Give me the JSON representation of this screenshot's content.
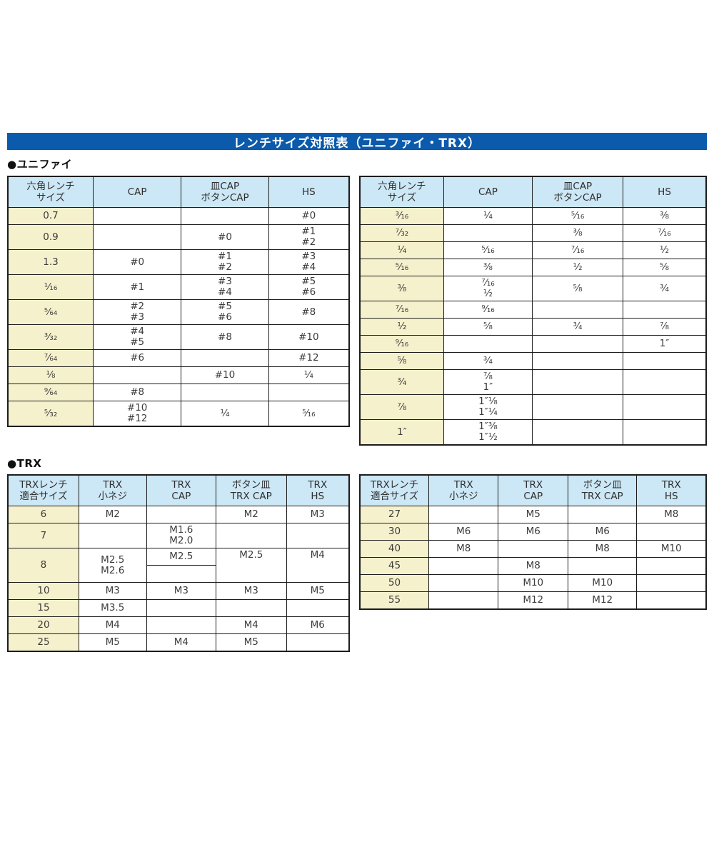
{
  "page": {
    "title": "レンチサイズ対照表（ユニファイ・TRX）",
    "colors": {
      "title_bar_blue": "#0b5aab",
      "title_text": "#ffffff",
      "header_cell_blue": "#cce7f5",
      "size_column_yellow": "#f6f1cd",
      "table_border": "#1c1c1c",
      "cell_text": "#3c3c3c"
    }
  },
  "unify": {
    "label": "●ユニファイ",
    "headers": [
      "六角レンチ\nサイズ",
      "CAP",
      "皿CAP\nボタンCAP",
      "HS"
    ],
    "left": {
      "rows": [
        {
          "cells": [
            {
              "t": "0.7"
            },
            {
              "t": ""
            },
            {
              "t": ""
            },
            {
              "t": "#0"
            }
          ]
        },
        {
          "cells": [
            {
              "t": "0.9"
            },
            {
              "t": ""
            },
            {
              "t": "#0"
            },
            {
              "t": "#1\n#2"
            }
          ]
        },
        {
          "cells": [
            {
              "t": "1.3"
            },
            {
              "t": "#0"
            },
            {
              "t": "#1\n#2"
            },
            {
              "t": "#3\n#4"
            }
          ]
        },
        {
          "cells": [
            {
              "t": "¹⁄₁₆"
            },
            {
              "t": "#1"
            },
            {
              "t": "#3\n#4"
            },
            {
              "t": "#5\n#6"
            }
          ]
        },
        {
          "cells": [
            {
              "t": "⁵⁄₆₄"
            },
            {
              "t": "#2\n#3"
            },
            {
              "t": "#5\n#6"
            },
            {
              "t": "#8"
            }
          ]
        },
        {
          "cells": [
            {
              "t": "³⁄₃₂"
            },
            {
              "t": "#4\n#5"
            },
            {
              "t": "#8"
            },
            {
              "t": "#10"
            }
          ]
        },
        {
          "cells": [
            {
              "t": "⁷⁄₆₄"
            },
            {
              "t": "#6"
            },
            {
              "t": ""
            },
            {
              "t": "#12"
            }
          ]
        },
        {
          "cells": [
            {
              "t": "¹⁄₈"
            },
            {
              "t": ""
            },
            {
              "t": "#10"
            },
            {
              "t": "¹⁄₄"
            }
          ]
        },
        {
          "cells": [
            {
              "t": "⁹⁄₆₄"
            },
            {
              "t": "#8"
            },
            {
              "t": ""
            },
            {
              "t": ""
            }
          ]
        },
        {
          "cells": [
            {
              "t": "⁵⁄₃₂"
            },
            {
              "t": "#10\n#12"
            },
            {
              "t": "¹⁄₄"
            },
            {
              "t": "⁵⁄₁₆"
            }
          ]
        }
      ]
    },
    "right": {
      "rows": [
        {
          "cells": [
            {
              "t": "³⁄₁₆"
            },
            {
              "t": "¹⁄₄"
            },
            {
              "t": "⁵⁄₁₆"
            },
            {
              "t": "³⁄₈"
            }
          ]
        },
        {
          "cells": [
            {
              "t": "⁷⁄₃₂"
            },
            {
              "t": ""
            },
            {
              "t": "³⁄₈"
            },
            {
              "t": "⁷⁄₁₆"
            }
          ]
        },
        {
          "cells": [
            {
              "t": "¹⁄₄"
            },
            {
              "t": "⁵⁄₁₆"
            },
            {
              "t": "⁷⁄₁₆"
            },
            {
              "t": "¹⁄₂"
            }
          ]
        },
        {
          "cells": [
            {
              "t": "⁵⁄₁₆"
            },
            {
              "t": "³⁄₈"
            },
            {
              "t": "¹⁄₂"
            },
            {
              "t": "⁵⁄₈"
            }
          ]
        },
        {
          "cells": [
            {
              "t": "³⁄₈"
            },
            {
              "t": "⁷⁄₁₆\n¹⁄₂"
            },
            {
              "t": "⁵⁄₈"
            },
            {
              "t": "³⁄₄"
            }
          ]
        },
        {
          "cells": [
            {
              "t": "⁷⁄₁₆"
            },
            {
              "t": "⁹⁄₁₆"
            },
            {
              "t": ""
            },
            {
              "t": ""
            }
          ]
        },
        {
          "cells": [
            {
              "t": "¹⁄₂"
            },
            {
              "t": "⁵⁄₈"
            },
            {
              "t": "³⁄₄"
            },
            {
              "t": "⁷⁄₈"
            }
          ]
        },
        {
          "cells": [
            {
              "t": "⁹⁄₁₆"
            },
            {
              "t": ""
            },
            {
              "t": ""
            },
            {
              "t": "1″"
            }
          ]
        },
        {
          "cells": [
            {
              "t": "⁵⁄₈"
            },
            {
              "t": "³⁄₄"
            },
            {
              "t": ""
            },
            {
              "t": ""
            }
          ]
        },
        {
          "cells": [
            {
              "t": "³⁄₄"
            },
            {
              "t": "⁷⁄₈\n1″"
            },
            {
              "t": ""
            },
            {
              "t": ""
            }
          ]
        },
        {
          "cells": [
            {
              "t": "⁷⁄₈"
            },
            {
              "t": "1″¹⁄₈\n1″¹⁄₄"
            },
            {
              "t": ""
            },
            {
              "t": ""
            }
          ]
        },
        {
          "cells": [
            {
              "t": "1″"
            },
            {
              "t": "1″³⁄₈\n1″¹⁄₂"
            },
            {
              "t": ""
            },
            {
              "t": ""
            }
          ]
        }
      ]
    }
  },
  "trx": {
    "label": "●TRX",
    "headers": [
      "TRXレンチ\n適合サイズ",
      "TRX\n小ネジ",
      "TRX\nCAP",
      "ボタン皿\nTRX CAP",
      "TRX\nHS"
    ],
    "left": {
      "rows": [
        {
          "cells": [
            {
              "t": "6"
            },
            {
              "t": "M2"
            },
            {
              "t": ""
            },
            {
              "t": "M2"
            },
            {
              "t": "M3"
            }
          ]
        },
        {
          "cells": [
            {
              "t": "7"
            },
            {
              "t": ""
            },
            {
              "t": "M1.6\nM2.0"
            },
            {
              "t": ""
            },
            {
              "t": ""
            }
          ]
        },
        {
          "cells": [
            {
              "t": "8",
              "rs": 2
            },
            {
              "t": "M2.5\nM2.6",
              "rs": 2
            },
            {
              "t": "M2.5"
            },
            {
              "t": "M2.5",
              "rs": 2,
              "va": "top"
            },
            {
              "t": "M4",
              "rs": 2,
              "va": "top"
            }
          ]
        },
        {
          "cells": [
            {
              "t": ""
            }
          ]
        },
        {
          "cells": [
            {
              "t": "10"
            },
            {
              "t": "M3"
            },
            {
              "t": "M3"
            },
            {
              "t": "M3"
            },
            {
              "t": "M5"
            }
          ]
        },
        {
          "cells": [
            {
              "t": "15"
            },
            {
              "t": "M3.5"
            },
            {
              "t": ""
            },
            {
              "t": ""
            },
            {
              "t": ""
            }
          ]
        },
        {
          "cells": [
            {
              "t": "20"
            },
            {
              "t": "M4"
            },
            {
              "t": ""
            },
            {
              "t": "M4"
            },
            {
              "t": "M6"
            }
          ]
        },
        {
          "cells": [
            {
              "t": "25"
            },
            {
              "t": "M5"
            },
            {
              "t": "M4"
            },
            {
              "t": "M5"
            },
            {
              "t": ""
            }
          ]
        }
      ]
    },
    "right": {
      "rows": [
        {
          "cells": [
            {
              "t": "27"
            },
            {
              "t": ""
            },
            {
              "t": "M5"
            },
            {
              "t": ""
            },
            {
              "t": "M8"
            }
          ]
        },
        {
          "cells": [
            {
              "t": "30"
            },
            {
              "t": "M6"
            },
            {
              "t": "M6"
            },
            {
              "t": "M6"
            },
            {
              "t": ""
            }
          ]
        },
        {
          "cells": [
            {
              "t": "40"
            },
            {
              "t": "M8"
            },
            {
              "t": ""
            },
            {
              "t": "M8"
            },
            {
              "t": "M10"
            }
          ]
        },
        {
          "cells": [
            {
              "t": "45"
            },
            {
              "t": ""
            },
            {
              "t": "M8"
            },
            {
              "t": ""
            },
            {
              "t": ""
            }
          ]
        },
        {
          "cells": [
            {
              "t": "50"
            },
            {
              "t": ""
            },
            {
              "t": "M10"
            },
            {
              "t": "M10"
            },
            {
              "t": ""
            }
          ]
        },
        {
          "cells": [
            {
              "t": "55"
            },
            {
              "t": ""
            },
            {
              "t": "M12"
            },
            {
              "t": "M12"
            },
            {
              "t": ""
            }
          ]
        }
      ]
    }
  }
}
